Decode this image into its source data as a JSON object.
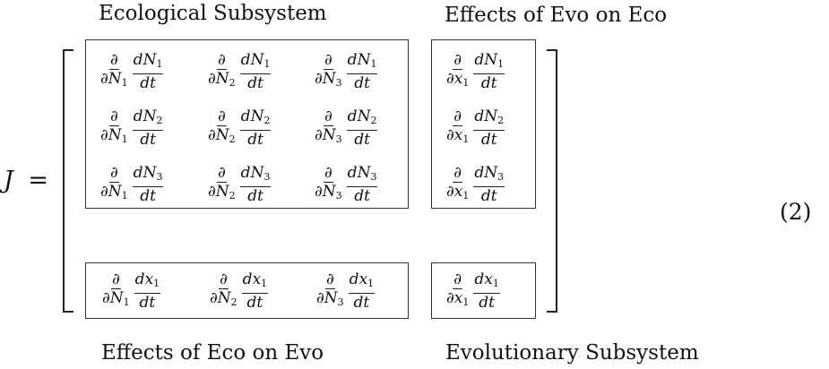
{
  "labels": {
    "top_left": "Ecological Subsystem",
    "top_right": "Effects of Evo on Eco",
    "bottom_left": "Effects of Eco on Evo",
    "bottom_right": "Evolutionary Subsystem"
  },
  "lhs": {
    "symbol": "J",
    "equals": "="
  },
  "equation_number": "(2)",
  "symbols": {
    "partial": "∂",
    "d": "d",
    "dt": "dt"
  },
  "matrix": {
    "eco_block": [
      [
        {
          "wrt": [
            "N",
            "1"
          ],
          "of": [
            "N",
            "1"
          ]
        },
        {
          "wrt": [
            "N",
            "2"
          ],
          "of": [
            "N",
            "1"
          ]
        },
        {
          "wrt": [
            "N",
            "3"
          ],
          "of": [
            "N",
            "1"
          ]
        }
      ],
      [
        {
          "wrt": [
            "N",
            "1"
          ],
          "of": [
            "N",
            "2"
          ]
        },
        {
          "wrt": [
            "N",
            "2"
          ],
          "of": [
            "N",
            "2"
          ]
        },
        {
          "wrt": [
            "N",
            "3"
          ],
          "of": [
            "N",
            "2"
          ]
        }
      ],
      [
        {
          "wrt": [
            "N",
            "1"
          ],
          "of": [
            "N",
            "3"
          ]
        },
        {
          "wrt": [
            "N",
            "2"
          ],
          "of": [
            "N",
            "3"
          ]
        },
        {
          "wrt": [
            "N",
            "3"
          ],
          "of": [
            "N",
            "3"
          ]
        }
      ]
    ],
    "evo_on_eco_block": [
      {
        "wrt": [
          "x",
          "1"
        ],
        "of": [
          "N",
          "1"
        ]
      },
      {
        "wrt": [
          "x",
          "1"
        ],
        "of": [
          "N",
          "2"
        ]
      },
      {
        "wrt": [
          "x",
          "1"
        ],
        "of": [
          "N",
          "3"
        ]
      }
    ],
    "eco_on_evo_block": [
      {
        "wrt": [
          "N",
          "1"
        ],
        "of": [
          "x",
          "1"
        ]
      },
      {
        "wrt": [
          "N",
          "2"
        ],
        "of": [
          "x",
          "1"
        ]
      },
      {
        "wrt": [
          "N",
          "3"
        ],
        "of": [
          "x",
          "1"
        ]
      }
    ],
    "evo_block": {
      "wrt": [
        "x",
        "1"
      ],
      "of": [
        "x",
        "1"
      ]
    }
  }
}
